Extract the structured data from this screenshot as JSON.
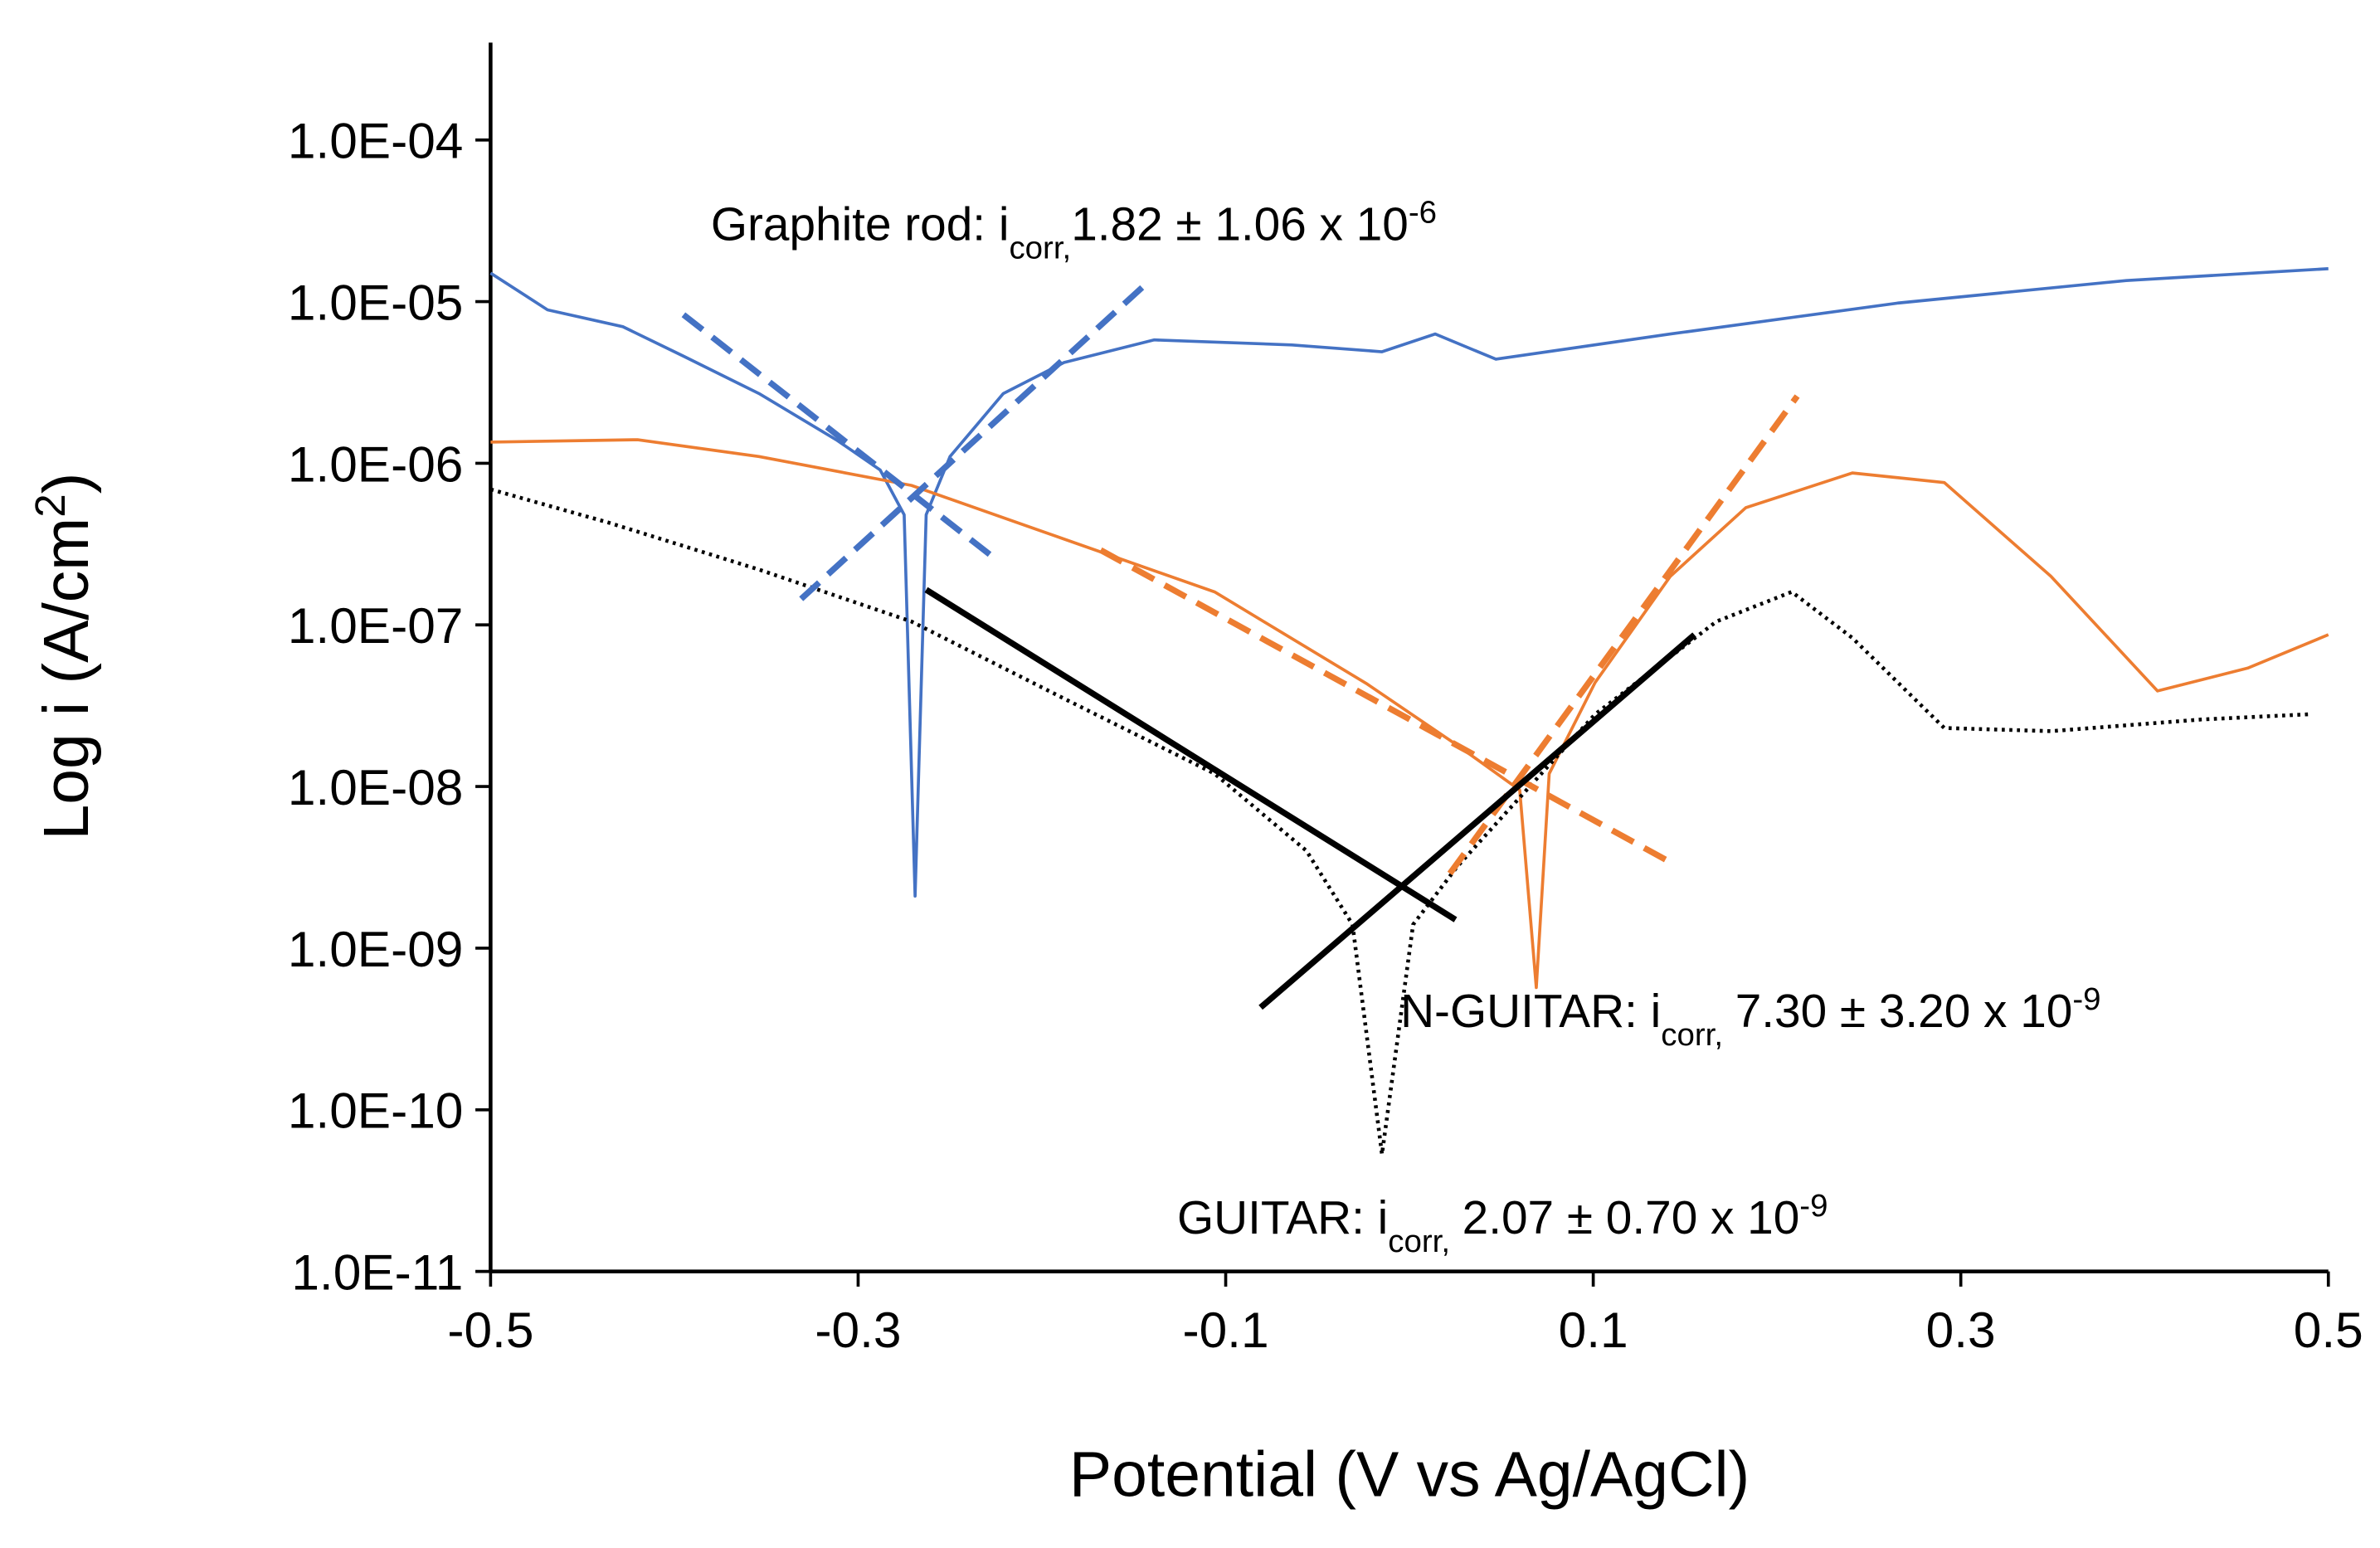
{
  "chart_data": {
    "type": "line",
    "x_label": "Potential (V vs Ag/AgCl)",
    "y_label": {
      "text": "Log i (A/cm",
      "sup": "2",
      "end": ")"
    },
    "xlim": [
      -0.5,
      0.5
    ],
    "xticks": [
      -0.5,
      -0.3,
      -0.1,
      0.1,
      0.3,
      0.5
    ],
    "ylim": [
      1e-11,
      0.0004
    ],
    "yscale": "log",
    "yticks": [
      {
        "value": 1e-11,
        "label": "1.0E-11"
      },
      {
        "value": 1e-10,
        "label": "1.0E-10"
      },
      {
        "value": 1e-09,
        "label": "1.0E-09"
      },
      {
        "value": 1e-08,
        "label": "1.0E-08"
      },
      {
        "value": 1e-07,
        "label": "1.0E-07"
      },
      {
        "value": 1e-06,
        "label": "1.0E-06"
      },
      {
        "value": 1e-05,
        "label": "1.0E-05"
      },
      {
        "value": 0.0001,
        "label": "1.0E-04"
      }
    ],
    "grid": false,
    "series": [
      {
        "color": "#4472c4",
        "style": "solid",
        "x": [
          -0.5,
          -0.469,
          -0.428,
          -0.395,
          -0.354,
          -0.312,
          -0.288,
          -0.275,
          -0.269,
          -0.263,
          -0.25,
          -0.221,
          -0.188,
          -0.139,
          -0.064,
          -0.015,
          0.014,
          0.047,
          0.142,
          0.266,
          0.39,
          0.5
        ],
        "values": [
          1.5e-05,
          8.9e-06,
          7e-06,
          4.6e-06,
          2.7e-06,
          1.4e-06,
          9.1e-07,
          4.8e-07,
          2.1e-09,
          4.8e-07,
          1.1e-06,
          2.7e-06,
          4.2e-06,
          5.8e-06,
          5.4e-06,
          4.9e-06,
          6.3e-06,
          4.4e-06,
          6.3e-06,
          9.8e-06,
          1.35e-05,
          1.6e-05
        ]
      },
      {
        "color": "#ed7d31",
        "style": "solid",
        "x": [
          -0.5,
          -0.42,
          -0.354,
          -0.271,
          -0.188,
          -0.106,
          -0.023,
          0.026,
          0.06,
          0.069,
          0.076,
          0.101,
          0.142,
          0.183,
          0.241,
          0.291,
          0.349,
          0.407,
          0.456,
          0.5
        ],
        "values": [
          1.35e-06,
          1.4e-06,
          1.1e-06,
          7.3e-07,
          3.4e-07,
          1.6e-07,
          4.3e-08,
          1.8e-08,
          9.5e-09,
          5.7e-10,
          1.2e-08,
          4.4e-08,
          2e-07,
          5.3e-07,
          8.7e-07,
          7.6e-07,
          2e-07,
          3.9e-08,
          5.4e-08,
          8.7e-08
        ]
      },
      {
        "color": "#000000",
        "style": "dotted",
        "x": [
          -0.5,
          -0.436,
          -0.354,
          -0.271,
          -0.188,
          -0.106,
          -0.056,
          -0.031,
          -0.015,
          0.002,
          0.026,
          0.101,
          0.167,
          0.208,
          0.241,
          0.291,
          0.349,
          0.431,
          0.489
        ],
        "values": [
          6.9e-07,
          4.3e-07,
          2.2e-07,
          1.05e-07,
          3.5e-08,
          1.2e-08,
          4e-09,
          1.4e-09,
          5.3e-11,
          1.4e-09,
          3.2e-09,
          2.8e-08,
          1.05e-07,
          1.6e-07,
          8.3e-08,
          2.3e-08,
          2.2e-08,
          2.6e-08,
          2.8e-08
        ]
      },
      {
        "color": "#4472c4",
        "style": "dashed",
        "x": [
          -0.395,
          -0.226
        ],
        "values": [
          8.3e-06,
          2.6e-07
        ]
      },
      {
        "color": "#4472c4",
        "style": "dashed",
        "x": [
          -0.331,
          -0.143
        ],
        "values": [
          1.45e-07,
          1.3e-05
        ]
      },
      {
        "color": "#ed7d31",
        "style": "dashed",
        "x": [
          -0.168,
          0.142
        ],
        "values": [
          2.9e-07,
          3.4e-09
        ]
      },
      {
        "color": "#ed7d31",
        "style": "dashed",
        "x": [
          0.022,
          0.211
        ],
        "values": [
          2.9e-09,
          2.6e-06
        ]
      },
      {
        "color": "#000000",
        "style": "solid",
        "x": [
          -0.263,
          0.025
        ],
        "values": [
          1.65e-07,
          1.5e-09
        ]
      },
      {
        "color": "#000000",
        "style": "solid",
        "x": [
          -0.081,
          0.155
        ],
        "values": [
          4.3e-10,
          8.7e-08
        ]
      }
    ],
    "annotations": [
      {
        "text": "Graphite rod: i",
        "sub": "corr,",
        "value": "1.82 ± 1.06 x 10",
        "sup": "-6"
      },
      {
        "text": "N-GUITAR: i",
        "sub": "corr,",
        "value": "7.30 ± 3.20 x 10",
        "sup": "-9"
      },
      {
        "text": "GUITAR: i",
        "sub": "corr,",
        "value": "2.07 ± 0.70 x 10",
        "sup": "-9"
      }
    ]
  }
}
